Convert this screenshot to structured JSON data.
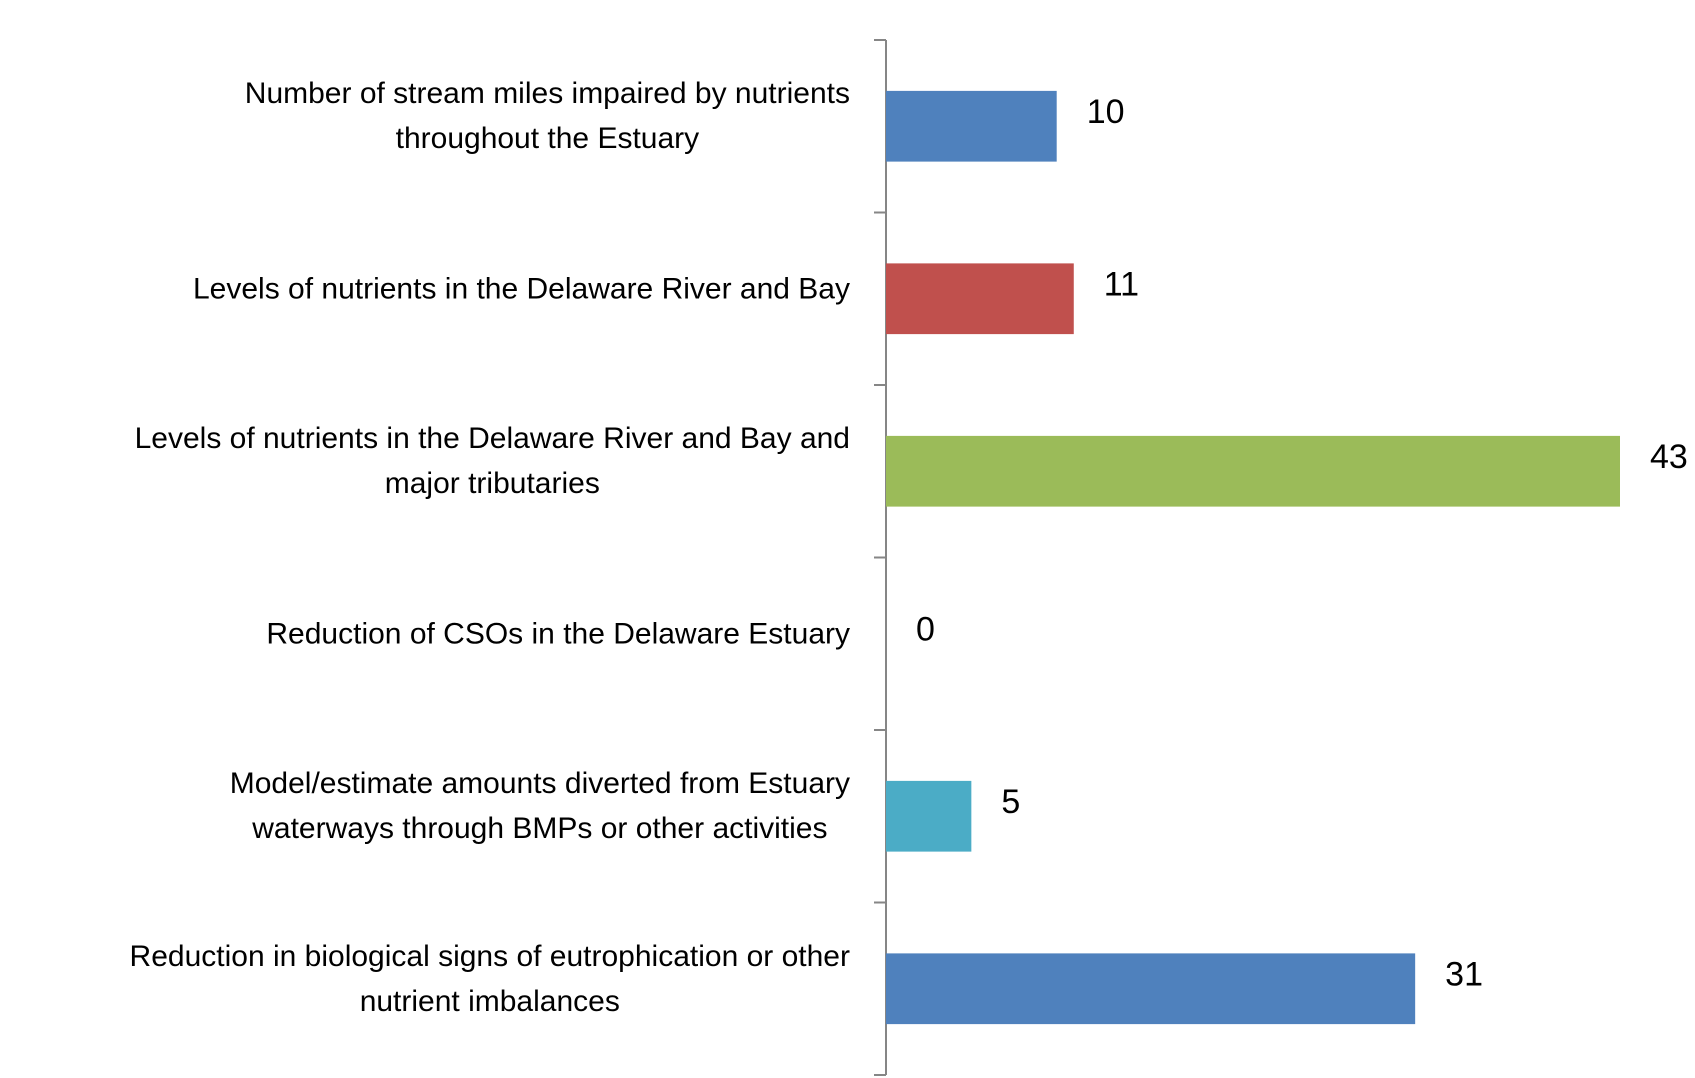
{
  "chart_data": {
    "type": "bar",
    "orientation": "horizontal",
    "categories": [
      "Number of stream miles impaired by nutrients\nthroughout the Estuary",
      "Levels of nutrients in the Delaware River and Bay",
      "Levels of nutrients in the Delaware River and Bay and\nmajor tributaries",
      "Reduction of CSOs in the Delaware Estuary",
      "Model/estimate amounts diverted from Estuary\nwaterways through BMPs or other activities",
      "Reduction in biological signs of eutrophication or other\nnutrient imbalances"
    ],
    "values": [
      10,
      11,
      43,
      0,
      5,
      31
    ],
    "colors": [
      "#4f81bd",
      "#c0504d",
      "#9bbb59",
      "#8064a2",
      "#4bacc6",
      "#4f81bd"
    ]
  }
}
